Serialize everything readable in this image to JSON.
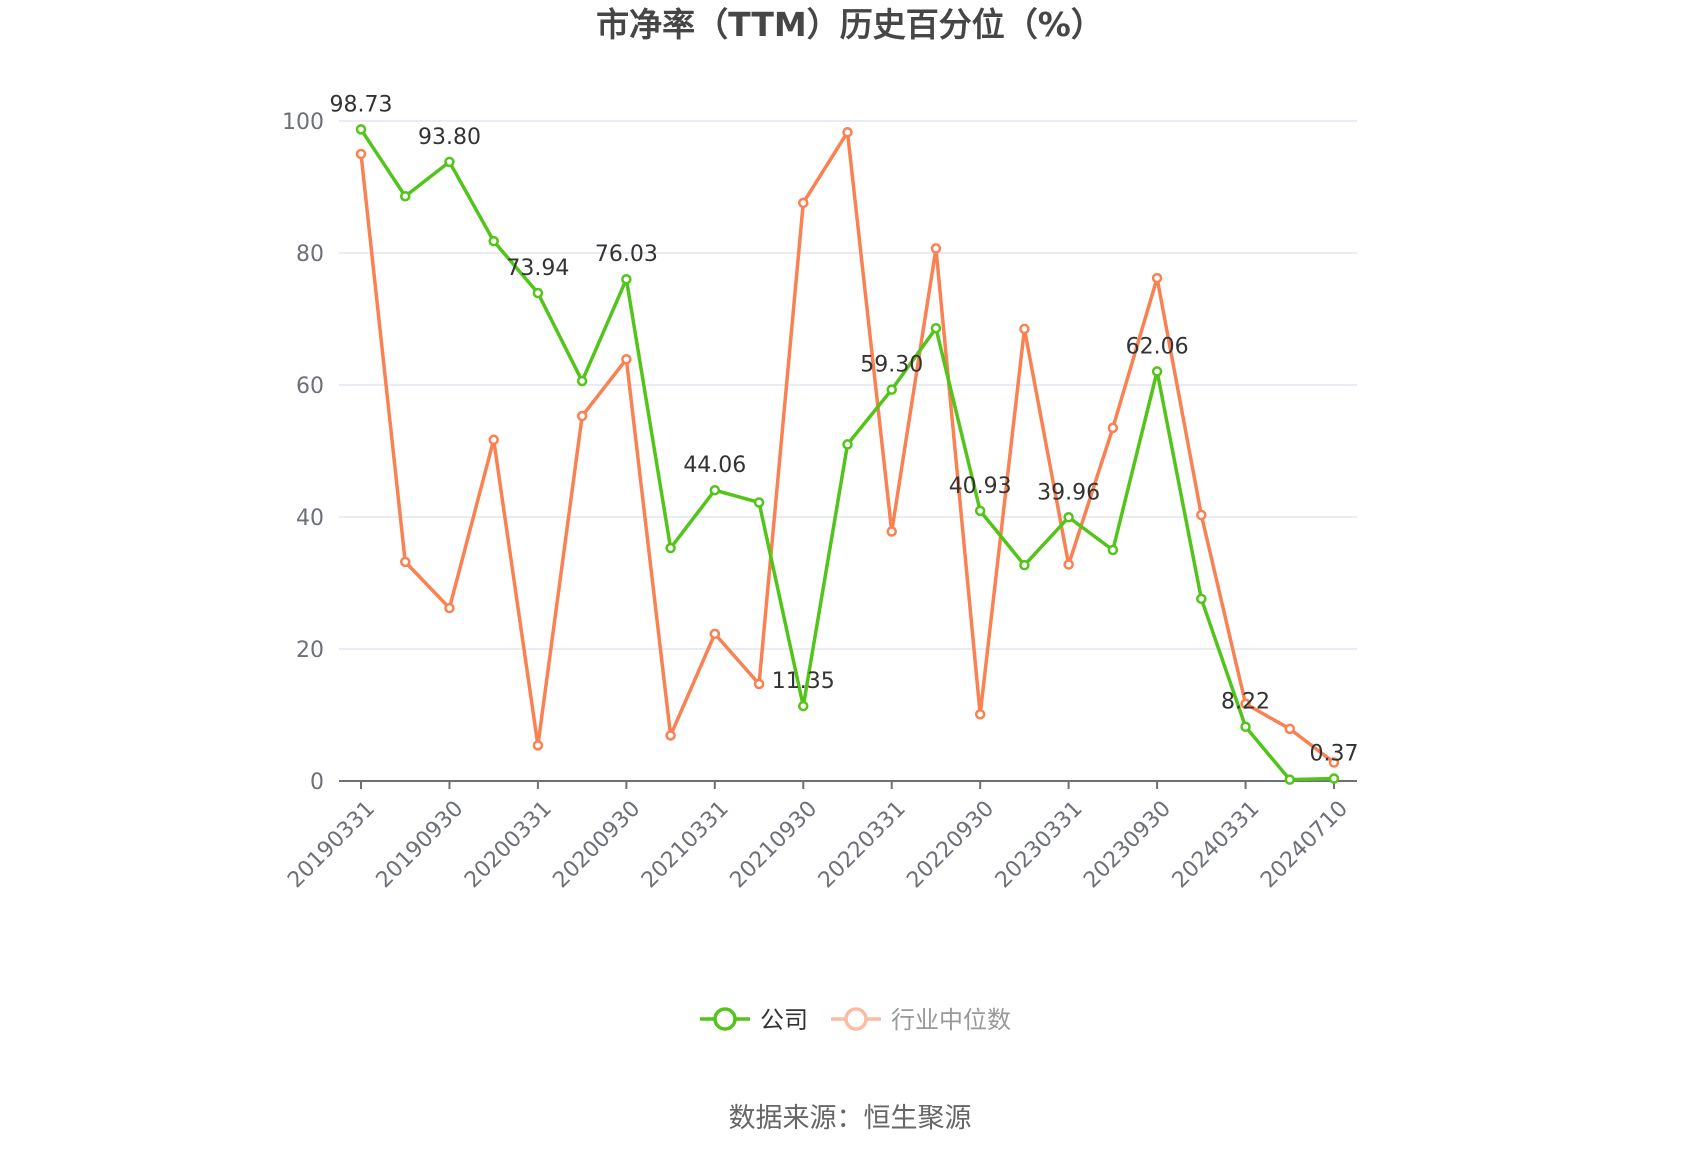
{
  "chart_data": {
    "type": "line",
    "title": "市净率（TTM）历史百分位（%）",
    "xlabel": "",
    "ylabel": "",
    "ylim": [
      0,
      100
    ],
    "yticks": [
      "0",
      "20",
      "40",
      "60",
      "80",
      "100"
    ],
    "grid": true,
    "legend_position": "bottom",
    "x": [
      "20190331",
      "20190630",
      "20190930",
      "20191231",
      "20200331",
      "20200630",
      "20200930",
      "20201231",
      "20210331",
      "20210630",
      "20210930",
      "20211231",
      "20220331",
      "20220630",
      "20220930",
      "20221231",
      "20230331",
      "20230630",
      "20230930",
      "20231231",
      "20240331",
      "20240630",
      "20240710"
    ],
    "xtick_labels": [
      "20190331",
      "20190930",
      "20200331",
      "20200930",
      "20210331",
      "20210930",
      "20220331",
      "20220930",
      "20230331",
      "20230930",
      "20240331",
      "20240710"
    ],
    "series": [
      {
        "name": "公司",
        "color": "#52c41a",
        "values": [
          98.73,
          88.6,
          93.8,
          81.8,
          73.94,
          60.6,
          76.03,
          35.3,
          44.06,
          42.2,
          11.35,
          51.0,
          59.3,
          68.6,
          40.93,
          32.7,
          39.96,
          35.0,
          62.06,
          27.6,
          8.22,
          0.2,
          0.37
        ],
        "data_labels": {
          "0": "98.73",
          "2": "93.80",
          "4": "73.94",
          "6": "76.03",
          "8": "44.06",
          "10": "11.35",
          "12": "59.30",
          "14": "40.93",
          "16": "39.96",
          "18": "62.06",
          "20": "8.22",
          "22": "0.37"
        }
      },
      {
        "name": "行业中位数",
        "color": "#fa8151",
        "values": [
          95.0,
          33.2,
          26.2,
          51.7,
          5.4,
          55.3,
          63.9,
          6.9,
          22.3,
          14.7,
          87.6,
          98.3,
          37.8,
          80.7,
          10.1,
          68.5,
          32.8,
          53.5,
          76.2,
          40.3,
          11.7,
          7.9,
          2.8
        ]
      }
    ]
  },
  "legend": {
    "items": [
      {
        "label": "公司",
        "color": "#52c41a",
        "active": true
      },
      {
        "label": "行业中位数",
        "color": "#fa8151",
        "active": false
      }
    ]
  },
  "source": "数据来源：恒生聚源"
}
